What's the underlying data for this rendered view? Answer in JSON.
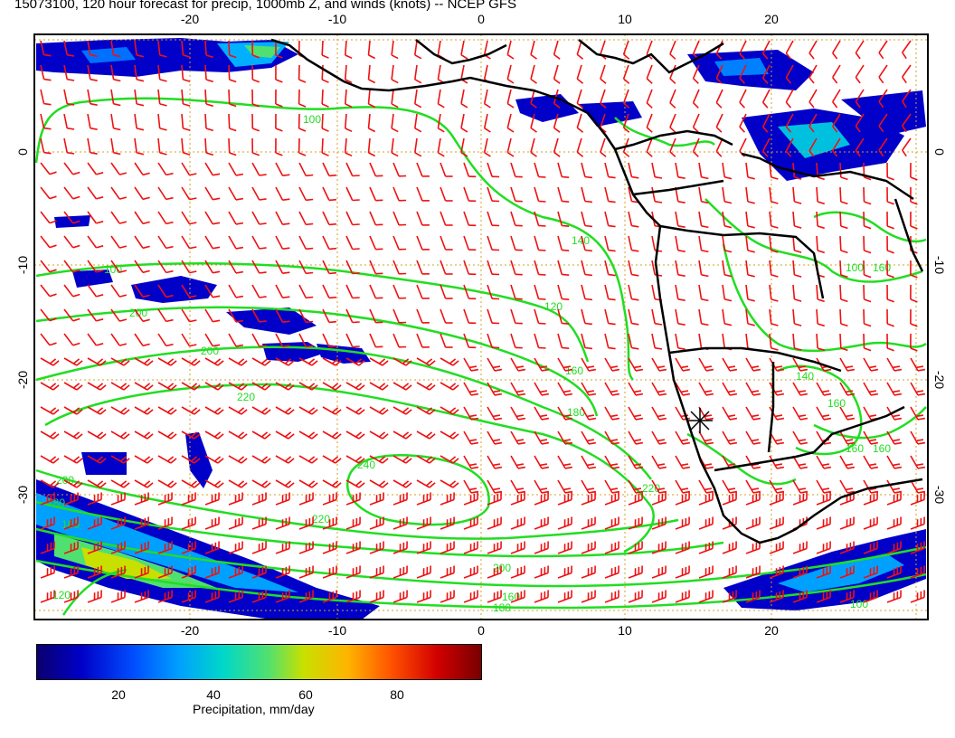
{
  "title": "15073100, 120 hour forecast for precip, 1000mb Z, and winds (knots) -- NCEP GFS",
  "map": {
    "lon_range": [
      -30,
      30
    ],
    "lat_range": [
      -40,
      9
    ],
    "lon_ticks": [
      "-20",
      "-10",
      "0",
      "10",
      "20"
    ],
    "lat_ticks": [
      "0",
      "-10",
      "-20",
      "-30"
    ],
    "grid": "dotted",
    "colors": {
      "coast": "#000000",
      "contour": "#22dd22",
      "wind": "#ee1111",
      "grid": "#d4a020",
      "precip": "#0000c8"
    },
    "contour_labels": [
      "160",
      "180",
      "200",
      "220",
      "240",
      "220",
      "200",
      "180",
      "160",
      "140",
      "120",
      "100",
      "160",
      "140",
      "120",
      "100",
      "160",
      "120",
      "100",
      "120"
    ]
  },
  "colorbar": {
    "ticks": [
      "20",
      "40",
      "60",
      "80"
    ],
    "label": "Precipitation, mm/day"
  }
}
